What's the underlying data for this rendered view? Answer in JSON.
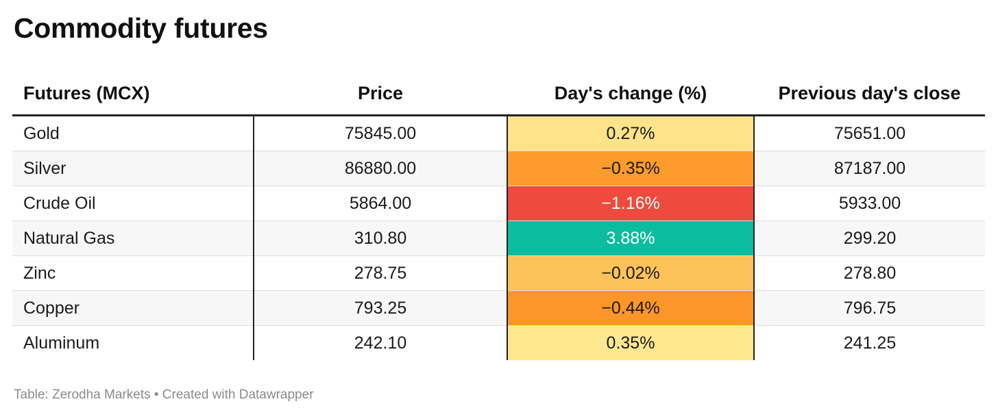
{
  "title": "Commodity futures",
  "chart_data": {
    "type": "table",
    "columns": [
      "Futures (MCX)",
      "Price",
      "Day's change (%)",
      "Previous day's close"
    ],
    "rows": [
      {
        "name": "Gold",
        "price": "75845.00",
        "change": "0.27%",
        "prev_close": "75651.00",
        "change_value": 0.27,
        "change_color": "#ffe38a",
        "change_text_color": "#1a1a1a"
      },
      {
        "name": "Silver",
        "price": "86880.00",
        "change": "−0.35%",
        "prev_close": "87187.00",
        "change_value": -0.35,
        "change_color": "#fd9c2c",
        "change_text_color": "#1a1a1a"
      },
      {
        "name": "Crude Oil",
        "price": "5864.00",
        "change": "−1.16%",
        "prev_close": "5933.00",
        "change_value": -1.16,
        "change_color": "#ee4a3d",
        "change_text_color": "#ffffff"
      },
      {
        "name": "Natural Gas",
        "price": "310.80",
        "change": "3.88%",
        "prev_close": "299.20",
        "change_value": 3.88,
        "change_color": "#0bbc9f",
        "change_text_color": "#ffffff"
      },
      {
        "name": "Zinc",
        "price": "278.75",
        "change": "−0.02%",
        "prev_close": "278.80",
        "change_value": -0.02,
        "change_color": "#fec25a",
        "change_text_color": "#1a1a1a"
      },
      {
        "name": "Copper",
        "price": "793.25",
        "change": "−0.44%",
        "prev_close": "796.75",
        "change_value": -0.44,
        "change_color": "#fd9628",
        "change_text_color": "#1a1a1a"
      },
      {
        "name": "Aluminum",
        "price": "242.10",
        "change": "0.35%",
        "prev_close": "241.25",
        "change_value": 0.35,
        "change_color": "#ffe78f",
        "change_text_color": "#1a1a1a"
      }
    ]
  },
  "footer": "Table: Zerodha Markets • Created with Datawrapper"
}
